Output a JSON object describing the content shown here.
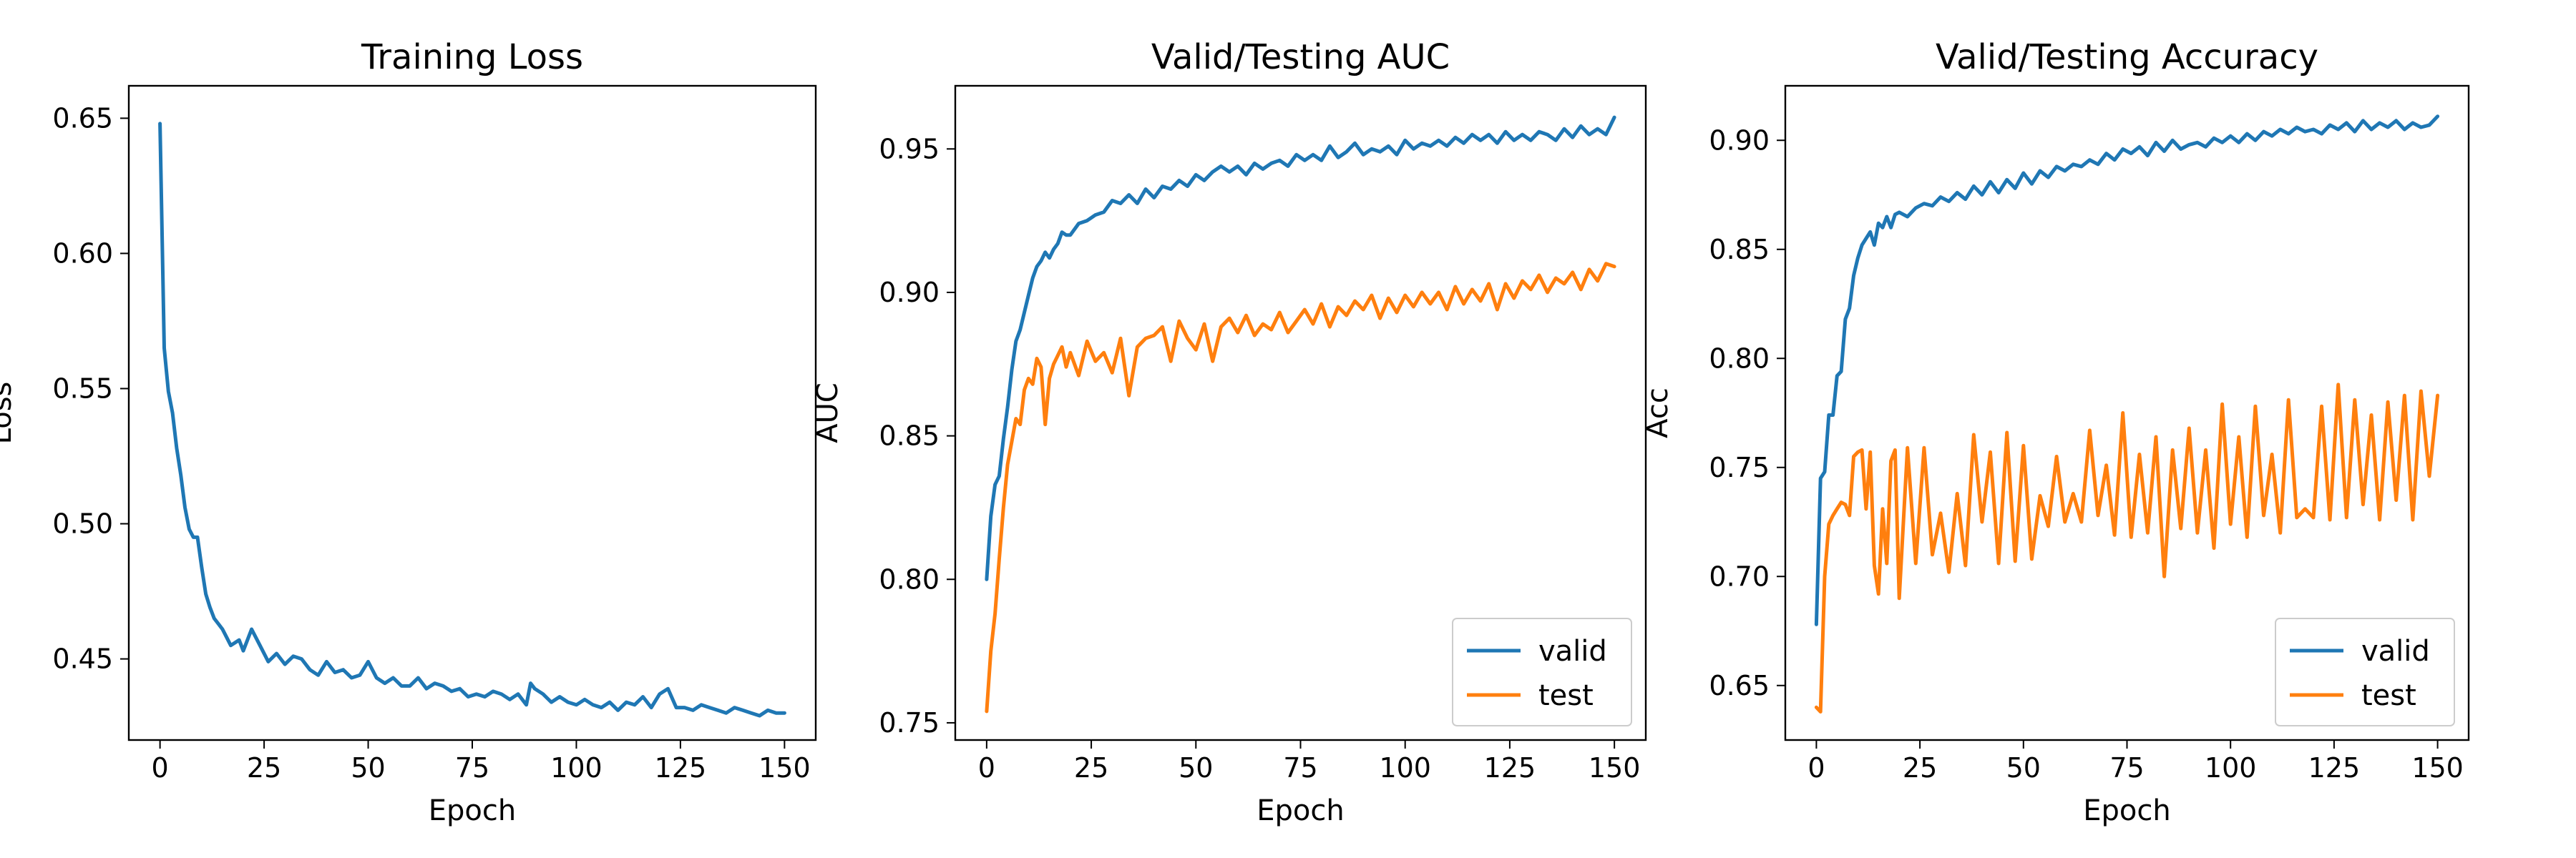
{
  "chart_data": [
    {
      "type": "line",
      "title": "Training Loss",
      "xlabel": "Epoch",
      "ylabel": "Loss",
      "xlim": [
        -7.5,
        157.5
      ],
      "ylim": [
        0.42,
        0.662
      ],
      "xticks": [
        0,
        25,
        50,
        75,
        100,
        125,
        150
      ],
      "xtick_labels": [
        "0",
        "25",
        "50",
        "75",
        "100",
        "125",
        "150"
      ],
      "yticks": [
        0.45,
        0.5,
        0.55,
        0.6,
        0.65
      ],
      "ytick_labels": [
        "0.45",
        "0.50",
        "0.55",
        "0.60",
        "0.65"
      ],
      "legend": "none",
      "grid": false,
      "series": [
        {
          "color": "#1f77b4",
          "x": [
            0,
            1,
            2,
            3,
            4,
            5,
            6,
            7,
            8,
            9,
            10,
            11,
            12,
            13,
            14,
            15,
            16,
            17,
            18,
            19,
            20,
            22,
            24,
            26,
            28,
            30,
            32,
            34,
            36,
            38,
            40,
            42,
            44,
            46,
            48,
            50,
            52,
            54,
            56,
            58,
            60,
            62,
            64,
            66,
            68,
            70,
            72,
            74,
            76,
            78,
            80,
            82,
            84,
            86,
            88,
            89,
            90,
            92,
            94,
            96,
            98,
            100,
            102,
            104,
            106,
            108,
            110,
            112,
            114,
            116,
            118,
            120,
            122,
            124,
            126,
            128,
            130,
            132,
            134,
            136,
            138,
            140,
            142,
            144,
            146,
            148,
            150
          ],
          "y": [
            0.648,
            0.565,
            0.549,
            0.541,
            0.528,
            0.518,
            0.506,
            0.498,
            0.495,
            0.495,
            0.484,
            0.474,
            0.469,
            0.465,
            0.463,
            0.461,
            0.458,
            0.455,
            0.456,
            0.457,
            0.453,
            0.461,
            0.455,
            0.449,
            0.452,
            0.448,
            0.451,
            0.45,
            0.446,
            0.444,
            0.449,
            0.445,
            0.446,
            0.443,
            0.444,
            0.449,
            0.443,
            0.441,
            0.443,
            0.44,
            0.44,
            0.443,
            0.439,
            0.441,
            0.44,
            0.438,
            0.439,
            0.436,
            0.437,
            0.436,
            0.438,
            0.437,
            0.435,
            0.437,
            0.433,
            0.441,
            0.439,
            0.437,
            0.434,
            0.436,
            0.434,
            0.433,
            0.435,
            0.433,
            0.432,
            0.434,
            0.431,
            0.434,
            0.433,
            0.436,
            0.432,
            0.437,
            0.439,
            0.432,
            0.432,
            0.431,
            0.433,
            0.432,
            0.431,
            0.43,
            0.432,
            0.431,
            0.43,
            0.429,
            0.431,
            0.43,
            0.43
          ]
        }
      ]
    },
    {
      "type": "line",
      "title": "Valid/Testing AUC",
      "xlabel": "Epoch",
      "ylabel": "AUC",
      "xlim": [
        -7.5,
        157.5
      ],
      "ylim": [
        0.744,
        0.972
      ],
      "xticks": [
        0,
        25,
        50,
        75,
        100,
        125,
        150
      ],
      "xtick_labels": [
        "0",
        "25",
        "50",
        "75",
        "100",
        "125",
        "150"
      ],
      "yticks": [
        0.75,
        0.8,
        0.85,
        0.9,
        0.95
      ],
      "ytick_labels": [
        "0.75",
        "0.80",
        "0.85",
        "0.90",
        "0.95"
      ],
      "legend": "lower-right",
      "grid": false,
      "series": [
        {
          "name": "valid",
          "color": "#1f77b4",
          "x": [
            0,
            1,
            2,
            3,
            4,
            5,
            6,
            7,
            8,
            9,
            10,
            11,
            12,
            13,
            14,
            15,
            16,
            17,
            18,
            19,
            20,
            22,
            24,
            26,
            28,
            30,
            32,
            34,
            36,
            38,
            40,
            42,
            44,
            46,
            48,
            50,
            52,
            54,
            56,
            58,
            60,
            62,
            64,
            66,
            68,
            70,
            72,
            74,
            76,
            78,
            80,
            82,
            84,
            86,
            88,
            90,
            92,
            94,
            96,
            98,
            100,
            102,
            104,
            106,
            108,
            110,
            112,
            114,
            116,
            118,
            120,
            122,
            124,
            126,
            128,
            130,
            132,
            134,
            136,
            138,
            140,
            142,
            144,
            146,
            148,
            150
          ],
          "y": [
            0.8,
            0.822,
            0.833,
            0.836,
            0.849,
            0.86,
            0.873,
            0.883,
            0.887,
            0.893,
            0.899,
            0.905,
            0.909,
            0.911,
            0.914,
            0.912,
            0.915,
            0.917,
            0.921,
            0.92,
            0.92,
            0.924,
            0.925,
            0.927,
            0.928,
            0.932,
            0.931,
            0.934,
            0.931,
            0.936,
            0.933,
            0.937,
            0.936,
            0.939,
            0.937,
            0.941,
            0.939,
            0.942,
            0.944,
            0.942,
            0.944,
            0.941,
            0.945,
            0.943,
            0.945,
            0.946,
            0.944,
            0.948,
            0.946,
            0.948,
            0.946,
            0.951,
            0.947,
            0.949,
            0.952,
            0.948,
            0.95,
            0.949,
            0.951,
            0.948,
            0.953,
            0.95,
            0.952,
            0.951,
            0.953,
            0.951,
            0.954,
            0.952,
            0.955,
            0.953,
            0.955,
            0.952,
            0.956,
            0.953,
            0.955,
            0.953,
            0.956,
            0.955,
            0.953,
            0.957,
            0.954,
            0.958,
            0.955,
            0.957,
            0.955,
            0.961
          ]
        },
        {
          "name": "test",
          "color": "#ff7f0e",
          "x": [
            0,
            1,
            2,
            3,
            4,
            5,
            6,
            7,
            8,
            9,
            10,
            11,
            12,
            13,
            14,
            15,
            16,
            17,
            18,
            19,
            20,
            22,
            24,
            26,
            28,
            30,
            32,
            34,
            36,
            38,
            40,
            42,
            44,
            46,
            48,
            50,
            52,
            54,
            56,
            58,
            60,
            62,
            64,
            66,
            68,
            70,
            72,
            74,
            76,
            78,
            80,
            82,
            84,
            86,
            88,
            90,
            92,
            94,
            96,
            98,
            100,
            102,
            104,
            106,
            108,
            110,
            112,
            114,
            116,
            118,
            120,
            122,
            124,
            126,
            128,
            130,
            132,
            134,
            136,
            138,
            140,
            142,
            144,
            146,
            148,
            150
          ],
          "y": [
            0.754,
            0.775,
            0.788,
            0.807,
            0.825,
            0.84,
            0.848,
            0.856,
            0.854,
            0.866,
            0.87,
            0.868,
            0.877,
            0.874,
            0.854,
            0.87,
            0.875,
            0.878,
            0.881,
            0.874,
            0.879,
            0.871,
            0.883,
            0.876,
            0.879,
            0.872,
            0.884,
            0.864,
            0.881,
            0.884,
            0.885,
            0.888,
            0.876,
            0.89,
            0.884,
            0.88,
            0.889,
            0.876,
            0.888,
            0.891,
            0.886,
            0.892,
            0.885,
            0.889,
            0.887,
            0.893,
            0.886,
            0.89,
            0.894,
            0.889,
            0.896,
            0.888,
            0.895,
            0.892,
            0.897,
            0.894,
            0.899,
            0.891,
            0.898,
            0.893,
            0.899,
            0.895,
            0.9,
            0.896,
            0.9,
            0.894,
            0.902,
            0.896,
            0.901,
            0.897,
            0.903,
            0.894,
            0.903,
            0.898,
            0.904,
            0.901,
            0.906,
            0.9,
            0.905,
            0.903,
            0.907,
            0.901,
            0.908,
            0.904,
            0.91,
            0.909
          ]
        }
      ]
    },
    {
      "type": "line",
      "title": "Valid/Testing Accuracy",
      "xlabel": "Epoch",
      "ylabel": "Acc",
      "xlim": [
        -7.5,
        157.5
      ],
      "ylim": [
        0.625,
        0.925
      ],
      "xticks": [
        0,
        25,
        50,
        75,
        100,
        125,
        150
      ],
      "xtick_labels": [
        "0",
        "25",
        "50",
        "75",
        "100",
        "125",
        "150"
      ],
      "yticks": [
        0.65,
        0.7,
        0.75,
        0.8,
        0.85,
        0.9
      ],
      "ytick_labels": [
        "0.65",
        "0.70",
        "0.75",
        "0.80",
        "0.85",
        "0.90"
      ],
      "legend": "lower-right",
      "grid": false,
      "series": [
        {
          "name": "valid",
          "color": "#1f77b4",
          "x": [
            0,
            1,
            2,
            3,
            4,
            5,
            6,
            7,
            8,
            9,
            10,
            11,
            12,
            13,
            14,
            15,
            16,
            17,
            18,
            19,
            20,
            22,
            24,
            26,
            28,
            30,
            32,
            34,
            36,
            38,
            40,
            42,
            44,
            46,
            48,
            50,
            52,
            54,
            56,
            58,
            60,
            62,
            64,
            66,
            68,
            70,
            72,
            74,
            76,
            78,
            80,
            82,
            84,
            86,
            88,
            90,
            92,
            94,
            96,
            98,
            100,
            102,
            104,
            106,
            108,
            110,
            112,
            114,
            116,
            118,
            120,
            122,
            124,
            126,
            128,
            130,
            132,
            134,
            136,
            138,
            140,
            142,
            144,
            146,
            148,
            150
          ],
          "y": [
            0.678,
            0.745,
            0.748,
            0.774,
            0.774,
            0.792,
            0.794,
            0.818,
            0.823,
            0.838,
            0.846,
            0.852,
            0.855,
            0.858,
            0.852,
            0.862,
            0.86,
            0.865,
            0.86,
            0.866,
            0.867,
            0.865,
            0.869,
            0.871,
            0.87,
            0.874,
            0.872,
            0.876,
            0.873,
            0.879,
            0.875,
            0.881,
            0.876,
            0.882,
            0.878,
            0.885,
            0.88,
            0.886,
            0.883,
            0.888,
            0.886,
            0.889,
            0.888,
            0.891,
            0.889,
            0.894,
            0.891,
            0.896,
            0.894,
            0.897,
            0.893,
            0.899,
            0.895,
            0.9,
            0.896,
            0.898,
            0.899,
            0.897,
            0.901,
            0.899,
            0.902,
            0.899,
            0.903,
            0.9,
            0.904,
            0.902,
            0.905,
            0.903,
            0.906,
            0.904,
            0.905,
            0.903,
            0.907,
            0.905,
            0.908,
            0.904,
            0.909,
            0.905,
            0.908,
            0.906,
            0.909,
            0.905,
            0.908,
            0.906,
            0.907,
            0.911
          ]
        },
        {
          "name": "test",
          "color": "#ff7f0e",
          "x": [
            0,
            1,
            2,
            3,
            4,
            5,
            6,
            7,
            8,
            9,
            10,
            11,
            12,
            13,
            14,
            15,
            16,
            17,
            18,
            19,
            20,
            22,
            24,
            26,
            28,
            30,
            32,
            34,
            36,
            38,
            40,
            42,
            44,
            46,
            48,
            50,
            52,
            54,
            56,
            58,
            60,
            62,
            64,
            66,
            68,
            70,
            72,
            74,
            76,
            78,
            80,
            82,
            84,
            86,
            88,
            90,
            92,
            94,
            96,
            98,
            100,
            102,
            104,
            106,
            108,
            110,
            112,
            114,
            116,
            118,
            120,
            122,
            124,
            126,
            128,
            130,
            132,
            134,
            136,
            138,
            140,
            142,
            144,
            146,
            148,
            150
          ],
          "y": [
            0.64,
            0.638,
            0.7,
            0.724,
            0.728,
            0.731,
            0.734,
            0.733,
            0.728,
            0.755,
            0.757,
            0.758,
            0.731,
            0.757,
            0.705,
            0.692,
            0.731,
            0.706,
            0.753,
            0.758,
            0.69,
            0.759,
            0.706,
            0.759,
            0.71,
            0.729,
            0.702,
            0.738,
            0.705,
            0.765,
            0.725,
            0.757,
            0.706,
            0.766,
            0.707,
            0.76,
            0.708,
            0.737,
            0.723,
            0.755,
            0.725,
            0.738,
            0.725,
            0.767,
            0.728,
            0.751,
            0.719,
            0.775,
            0.718,
            0.756,
            0.72,
            0.764,
            0.7,
            0.758,
            0.722,
            0.768,
            0.72,
            0.758,
            0.713,
            0.779,
            0.724,
            0.764,
            0.718,
            0.778,
            0.728,
            0.756,
            0.72,
            0.781,
            0.727,
            0.731,
            0.727,
            0.778,
            0.726,
            0.788,
            0.727,
            0.781,
            0.733,
            0.774,
            0.726,
            0.78,
            0.735,
            0.783,
            0.726,
            0.785,
            0.746,
            0.783
          ]
        }
      ]
    }
  ]
}
